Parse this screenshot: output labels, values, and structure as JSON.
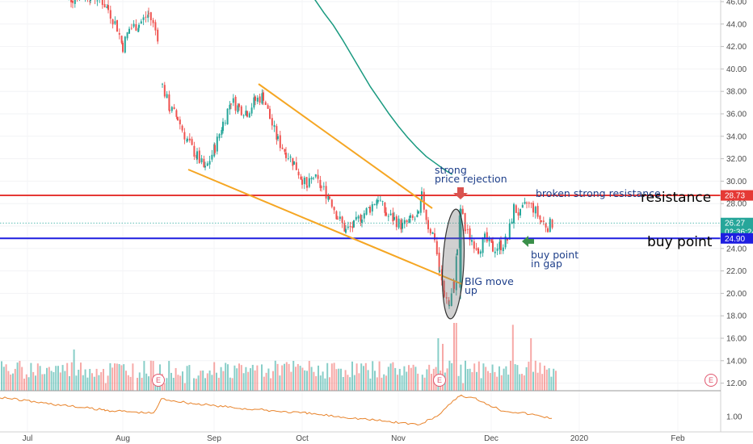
{
  "chart_data": {
    "type": "candlestick",
    "price_axis": {
      "ticks": [
        "46.00",
        "44.00",
        "42.00",
        "40.00",
        "38.00",
        "36.00",
        "34.00",
        "32.00",
        "30.00",
        "28.00",
        "26.00",
        "24.00",
        "22.00",
        "20.00",
        "18.00",
        "16.00",
        "14.00",
        "12.00"
      ],
      "range": [
        11.2,
        46.8
      ]
    },
    "indicator_axis": {
      "ticks": [
        "1.00"
      ]
    },
    "time_axis": {
      "labels": [
        "Jul",
        "Aug",
        "Sep",
        "Oct",
        "Nov",
        "Dec",
        "2020",
        "Feb"
      ]
    },
    "price_badges": [
      {
        "name": "resistance-price",
        "text": "28.73",
        "value": 28.73,
        "color": "#e53935"
      },
      {
        "name": "last-price",
        "text": "26.27",
        "value": 26.27,
        "color": "#26a69a"
      },
      {
        "name": "countdown",
        "text": "02:36:24",
        "value": 25.55,
        "color": "#26a69a"
      },
      {
        "name": "buy-price",
        "text": "24.90",
        "value": 24.9,
        "color": "#1e1ee0"
      }
    ],
    "horizontal_lines": [
      {
        "name": "resistance-line",
        "value": 28.73,
        "color": "#e53935"
      },
      {
        "name": "buy-point-line",
        "value": 24.9,
        "color": "#1e1ee0"
      },
      {
        "name": "last-price-line",
        "value": 26.27,
        "color": "#26a69a"
      }
    ],
    "moving_average": {
      "name": "ma-200",
      "color": "#1a9a80",
      "points": [
        [
          0.0,
          47.2
        ],
        [
          0.1,
          46.2
        ],
        [
          0.2,
          45.0
        ],
        [
          0.3,
          43.9
        ],
        [
          0.4,
          42.6
        ],
        [
          0.5,
          41.2
        ],
        [
          0.6,
          39.8
        ],
        [
          0.7,
          38.4
        ],
        [
          0.8,
          37.2
        ],
        [
          0.9,
          36.0
        ],
        [
          1.0,
          34.9
        ],
        [
          1.1,
          33.9
        ],
        [
          1.2,
          33.0
        ],
        [
          1.3,
          32.2
        ],
        [
          1.4,
          31.6
        ],
        [
          1.5,
          31.0
        ],
        [
          1.58,
          30.6
        ]
      ],
      "time_anchor": "Nov"
    },
    "annotations": [
      {
        "name": "annotation-strong-price-rejection",
        "lines": [
          "strong",
          "price rejection"
        ]
      },
      {
        "name": "annotation-broken-resistance",
        "lines": [
          "broken strong resistance"
        ]
      },
      {
        "name": "annotation-buy-point-gap",
        "lines": [
          "buy point",
          "in gap"
        ]
      },
      {
        "name": "annotation-big-move-up",
        "lines": [
          "BIG move",
          "up"
        ]
      },
      {
        "name": "label-resistance",
        "lines": [
          "resistance"
        ]
      },
      {
        "name": "label-buy-point",
        "lines": [
          "buy point"
        ]
      }
    ],
    "earnings_markers": [
      "E",
      "E",
      "E"
    ],
    "colors": {
      "up": "#26a69a",
      "down": "#ef5350",
      "trend": "#f5a623",
      "indicator": "#e8832a"
    }
  }
}
